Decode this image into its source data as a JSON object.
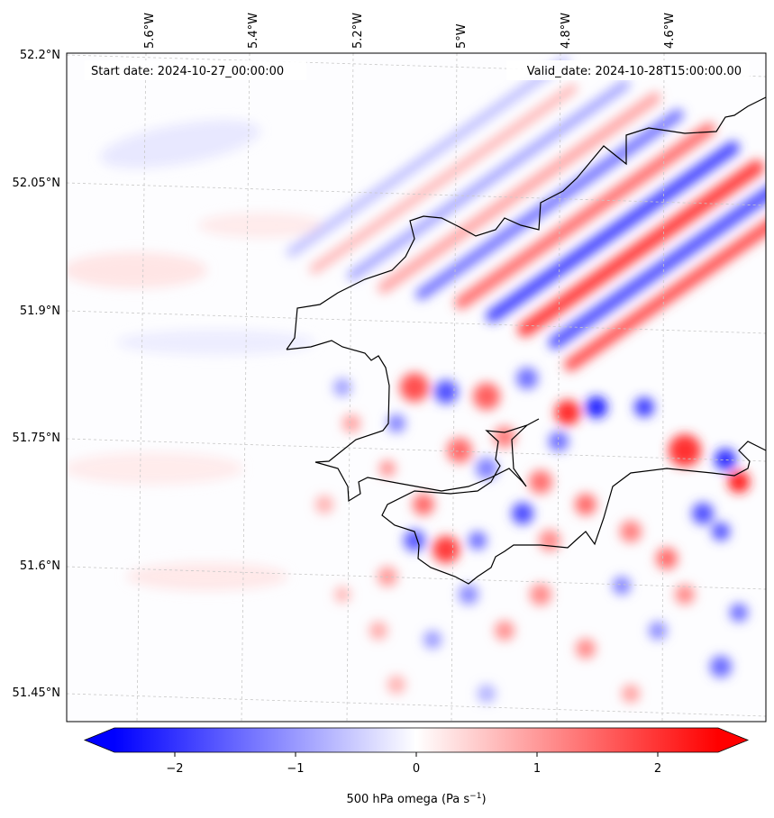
{
  "map": {
    "start_date_label": "Start date: 2024-10-27_00:00:00",
    "valid_date_label": "Valid_date: 2024-10-28T15:00:00.00",
    "lon_ticks": [
      "5.6°W",
      "5.4°W",
      "5.2°W",
      "5°W",
      "4.8°W",
      "4.6°W"
    ],
    "lat_ticks": [
      "52.2°N",
      "52.05°N",
      "51.9°N",
      "51.75°N",
      "51.6°N",
      "51.45°N"
    ],
    "field": "500 hPa omega",
    "colormap": "bwr",
    "colors": {
      "negative": "#0000ff",
      "zero": "#ffffff",
      "positive": "#ff0000"
    }
  },
  "colorbar": {
    "ticks": [
      "−2",
      "−1",
      "0",
      "1",
      "2"
    ],
    "tick_values": [
      -2,
      -1,
      0,
      1,
      2
    ],
    "range": [
      -2.5,
      2.5
    ],
    "extend": "both",
    "label_prefix": "500 hPa omega (Pa s",
    "label_exp": "−1",
    "label_suffix": ")"
  }
}
